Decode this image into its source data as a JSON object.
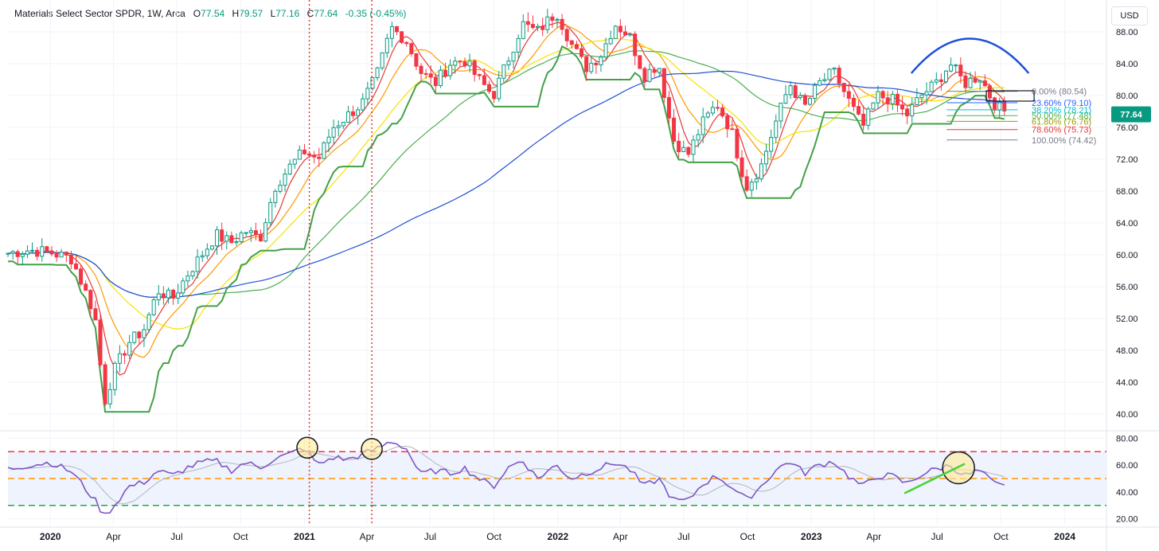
{
  "legend": {
    "symbol": "Materials Select Sector SPDR",
    "interval": "1W",
    "exchange": "Arca",
    "open_label": "O",
    "open": "77.54",
    "high_label": "H",
    "high": "79.57",
    "low_label": "L",
    "low": "77.16",
    "close_label": "C",
    "close": "77.64",
    "change": "-0.35 (-0.45%)"
  },
  "currency_button": "USD",
  "chart_data": [
    {
      "type": "candlestick",
      "title": "Materials Select Sector SPDR, 1W, Arca",
      "ylim": [
        38,
        92
      ],
      "y_ticks": [
        "88.00",
        "84.00",
        "80.00",
        "76.00",
        "72.00",
        "68.00",
        "64.00",
        "60.00",
        "56.00",
        "52.00",
        "48.00",
        "44.00",
        "40.00"
      ],
      "x_ticks": [
        "2020",
        "Apr",
        "Jul",
        "Oct",
        "2021",
        "Apr",
        "Jul",
        "Oct",
        "2022",
        "Apr",
        "Jul",
        "Oct",
        "2023",
        "Apr",
        "Jul",
        "Oct",
        "2024"
      ],
      "last_price": "77.64",
      "close_path": [
        [
          "2019-11",
          60.2
        ],
        [
          "2019-12",
          60.6
        ],
        [
          "2020-01",
          60.3
        ],
        [
          "2020-02",
          59.5
        ],
        [
          "2020-03-05",
          52.5
        ],
        [
          "2020-03-19",
          41.5
        ],
        [
          "2020-04-02",
          45.5
        ],
        [
          "2020-04-23",
          49.0
        ],
        [
          "2020-05-14",
          50.5
        ],
        [
          "2020-06-04",
          55.5
        ],
        [
          "2020-06-25",
          54.5
        ],
        [
          "2020-07-16",
          57.5
        ],
        [
          "2020-08-06",
          60.0
        ],
        [
          "2020-08-27",
          62.5
        ],
        [
          "2020-09-17",
          61.5
        ],
        [
          "2020-10-08",
          63.0
        ],
        [
          "2020-10-29",
          62.0
        ],
        [
          "2020-11-19",
          68.5
        ],
        [
          "2020-12-10",
          71.0
        ],
        [
          "2020-12-31",
          73.0
        ],
        [
          "2021-01-21",
          72.0
        ],
        [
          "2021-02-11",
          76.0
        ],
        [
          "2021-03-04",
          77.5
        ],
        [
          "2021-03-25",
          79.0
        ],
        [
          "2021-04-15",
          82.5
        ],
        [
          "2021-05-06",
          88.5
        ],
        [
          "2021-05-27",
          87.0
        ],
        [
          "2021-06-17",
          83.0
        ],
        [
          "2021-07-08",
          81.5
        ],
        [
          "2021-07-29",
          84.0
        ],
        [
          "2021-08-19",
          84.5
        ],
        [
          "2021-09-09",
          82.0
        ],
        [
          "2021-09-30",
          80.0
        ],
        [
          "2021-10-21",
          84.5
        ],
        [
          "2021-11-11",
          89.0
        ],
        [
          "2021-12-02",
          88.0
        ],
        [
          "2021-12-30",
          90.5
        ],
        [
          "2022-01-20",
          86.5
        ],
        [
          "2022-02-10",
          83.5
        ],
        [
          "2022-03-03",
          85.0
        ],
        [
          "2022-03-24",
          89.0
        ],
        [
          "2022-04-14",
          87.5
        ],
        [
          "2022-05-05",
          82.5
        ],
        [
          "2022-05-26",
          84.0
        ],
        [
          "2022-06-16",
          74.5
        ],
        [
          "2022-07-07",
          72.5
        ],
        [
          "2022-07-28",
          76.5
        ],
        [
          "2022-08-18",
          79.0
        ],
        [
          "2022-09-08",
          75.5
        ],
        [
          "2022-09-29",
          68.5
        ],
        [
          "2022-10-20",
          71.0
        ],
        [
          "2022-11-10",
          76.5
        ],
        [
          "2022-12-01",
          81.5
        ],
        [
          "2022-12-22",
          78.5
        ],
        [
          "2023-01-12",
          81.5
        ],
        [
          "2023-02-02",
          83.0
        ],
        [
          "2023-02-23",
          79.5
        ],
        [
          "2023-03-16",
          76.0
        ],
        [
          "2023-04-06",
          80.0
        ],
        [
          "2023-04-27",
          79.5
        ],
        [
          "2023-05-18",
          77.5
        ],
        [
          "2023-06-08",
          80.0
        ],
        [
          "2023-06-29",
          81.5
        ],
        [
          "2023-07-20",
          84.0
        ],
        [
          "2023-08-10",
          81.5
        ],
        [
          "2023-08-31",
          82.5
        ],
        [
          "2023-09-21",
          79.0
        ],
        [
          "2023-10-12",
          77.64
        ]
      ],
      "fib_levels": [
        {
          "label": "0.00% (80.54)",
          "value": 80.54,
          "color": "#787b86"
        },
        {
          "label": "23.60% (79.10)",
          "value": 79.1,
          "color": "#2962ff"
        },
        {
          "label": "38.20% (78.21)",
          "value": 78.21,
          "color": "#00bcd4"
        },
        {
          "label": "50.00% (77.48)",
          "value": 77.48,
          "color": "#4caf50"
        },
        {
          "label": "61.80% (76.76)",
          "value": 76.76,
          "color": "#9c9c00"
        },
        {
          "label": "78.60% (75.73)",
          "value": 75.73,
          "color": "#e53935"
        },
        {
          "label": "100.00% (74.42)",
          "value": 74.42,
          "color": "#787b86"
        }
      ],
      "vertical_markers": [
        "2021-01",
        "2021-04"
      ]
    },
    {
      "type": "line",
      "ylim": [
        15,
        85
      ],
      "y_ticks": [
        "80.00",
        "60.00",
        "40.00",
        "20.00"
      ],
      "overbought": 70,
      "midline": 50,
      "oversold": 30,
      "rsi_path": [
        [
          "2019-11",
          57
        ],
        [
          "2019-12",
          60
        ],
        [
          "2020-01",
          62
        ],
        [
          "2020-02",
          55
        ],
        [
          "2020-03-05",
          34
        ],
        [
          "2020-03-19",
          22
        ],
        [
          "2020-04-02",
          30
        ],
        [
          "2020-04-23",
          44
        ],
        [
          "2020-05-14",
          47
        ],
        [
          "2020-06-04",
          56
        ],
        [
          "2020-06-25",
          52
        ],
        [
          "2020-07-16",
          58
        ],
        [
          "2020-08-06",
          62
        ],
        [
          "2020-08-27",
          63
        ],
        [
          "2020-09-17",
          56
        ],
        [
          "2020-10-08",
          62
        ],
        [
          "2020-10-29",
          58
        ],
        [
          "2020-11-19",
          65
        ],
        [
          "2020-12-10",
          68
        ],
        [
          "2020-12-31",
          73
        ],
        [
          "2021-01-21",
          60
        ],
        [
          "2021-02-11",
          66
        ],
        [
          "2021-03-04",
          64
        ],
        [
          "2021-03-25",
          68
        ],
        [
          "2021-04-15",
          72
        ],
        [
          "2021-05-06",
          78
        ],
        [
          "2021-05-27",
          73
        ],
        [
          "2021-06-17",
          53
        ],
        [
          "2021-07-08",
          56
        ],
        [
          "2021-07-29",
          54
        ],
        [
          "2021-08-19",
          58
        ],
        [
          "2021-09-09",
          50
        ],
        [
          "2021-09-30",
          44
        ],
        [
          "2021-10-21",
          58
        ],
        [
          "2021-11-11",
          64
        ],
        [
          "2021-12-02",
          50
        ],
        [
          "2021-12-30",
          60
        ],
        [
          "2022-01-20",
          50
        ],
        [
          "2022-02-10",
          54
        ],
        [
          "2022-03-03",
          58
        ],
        [
          "2022-03-24",
          62
        ],
        [
          "2022-04-14",
          57
        ],
        [
          "2022-05-05",
          44
        ],
        [
          "2022-05-26",
          50
        ],
        [
          "2022-06-16",
          34
        ],
        [
          "2022-07-07",
          33
        ],
        [
          "2022-07-28",
          46
        ],
        [
          "2022-08-18",
          52
        ],
        [
          "2022-09-08",
          44
        ],
        [
          "2022-09-29",
          34
        ],
        [
          "2022-10-20",
          44
        ],
        [
          "2022-11-10",
          56
        ],
        [
          "2022-12-01",
          63
        ],
        [
          "2022-12-22",
          54
        ],
        [
          "2023-01-12",
          60
        ],
        [
          "2023-02-02",
          63
        ],
        [
          "2023-02-23",
          52
        ],
        [
          "2023-03-16",
          44
        ],
        [
          "2023-04-06",
          52
        ],
        [
          "2023-04-27",
          52
        ],
        [
          "2023-05-18",
          46
        ],
        [
          "2023-06-08",
          53
        ],
        [
          "2023-06-29",
          57
        ],
        [
          "2023-07-20",
          60
        ],
        [
          "2023-08-10",
          52
        ],
        [
          "2023-08-31",
          56
        ],
        [
          "2023-09-21",
          46
        ],
        [
          "2023-10-12",
          43
        ]
      ]
    }
  ]
}
